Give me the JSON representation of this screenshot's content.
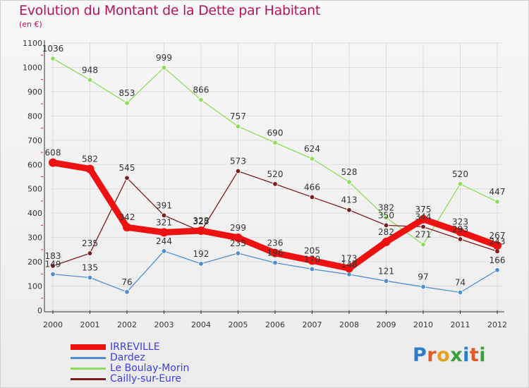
{
  "colors": {
    "title": "#b5145a",
    "legend_text": "#3b3bf0",
    "axis": "#333333",
    "grid": "#dcdcdc"
  },
  "logo": {
    "text": "Proxiti",
    "letters": [
      "P",
      "r",
      "o",
      "x",
      "i",
      "t",
      "i"
    ],
    "letter_colors": [
      "#2c7ec9",
      "#e05a28",
      "#e6a21f",
      "#3aa13a",
      "#2c7ec9",
      "#e05a28",
      "#3aa13a"
    ]
  },
  "chart_data": {
    "type": "line",
    "title": "Evolution du Montant de la Dette par Habitant",
    "subtitle": "(en €)",
    "xlabel": "",
    "ylabel": "",
    "categories": [
      "2000",
      "2001",
      "2002",
      "2003",
      "2004",
      "2005",
      "2006",
      "2007",
      "2008",
      "2009",
      "2010",
      "2011",
      "2012"
    ],
    "ylim": [
      0,
      1100
    ],
    "yticks": [
      0,
      100,
      200,
      300,
      400,
      500,
      600,
      700,
      800,
      900,
      1000,
      1100
    ],
    "grid": true,
    "legend_position": "bottom-left",
    "series": [
      {
        "name": "IRREVILLE",
        "color": "#ee1111",
        "values": [
          608,
          582,
          342,
          321,
          328,
          299,
          236,
          205,
          173,
          282,
          375,
          323,
          267
        ]
      },
      {
        "name": "Dardez",
        "color": "#4f8fcf",
        "values": [
          149,
          135,
          76,
          244,
          192,
          235,
          196,
          170,
          148,
          121,
          97,
          74,
          166
        ]
      },
      {
        "name": "Le Boulay-Morin",
        "color": "#8fdc5a",
        "values": [
          1036,
          948,
          853,
          999,
          866,
          757,
          690,
          624,
          528,
          382,
          271,
          520,
          447
        ]
      },
      {
        "name": "Cailly-sur-Eure",
        "color": "#7a1c1c",
        "values": [
          183,
          235,
          545,
          391,
          325,
          573,
          520,
          466,
          413,
          350,
          344,
          293,
          243
        ]
      }
    ]
  }
}
